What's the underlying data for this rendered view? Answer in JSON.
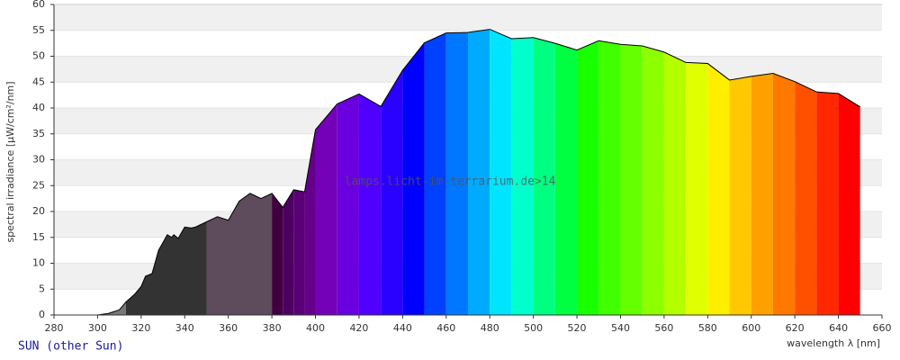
{
  "chart_data": {
    "type": "area",
    "y_label": "spectral irradiance [µW/cm²/nm]",
    "x_label": "wavelength λ [nm]",
    "watermark": "lamps.licht-im-terrarium.de>14",
    "caption": "SUN (other Sun)",
    "xlim": [
      280,
      660
    ],
    "ylim": [
      0,
      60
    ],
    "xticks": [
      280,
      300,
      320,
      340,
      360,
      380,
      400,
      420,
      440,
      460,
      480,
      500,
      520,
      540,
      560,
      580,
      600,
      620,
      640,
      660
    ],
    "yticks": [
      0,
      5,
      10,
      15,
      20,
      25,
      30,
      35,
      40,
      45,
      50,
      55,
      60
    ],
    "grid": true,
    "line_color": "#000000",
    "x": [
      280,
      300,
      305,
      310,
      313,
      317,
      320,
      322,
      325,
      328,
      330,
      332,
      334,
      335,
      337,
      340,
      343,
      345,
      350,
      355,
      360,
      365,
      370,
      375,
      380,
      385,
      390,
      395,
      400,
      410,
      420,
      430,
      440,
      450,
      460,
      470,
      480,
      490,
      500,
      510,
      520,
      530,
      540,
      550,
      560,
      570,
      580,
      590,
      600,
      610,
      620,
      630,
      640,
      650
    ],
    "values": [
      0,
      0,
      0.3,
      1,
      2.5,
      4,
      5.5,
      7.5,
      8,
      12.5,
      14,
      15.5,
      15,
      15.5,
      14.8,
      17,
      16.8,
      17,
      18,
      19,
      18.3,
      22,
      23.5,
      22.5,
      23.5,
      20.8,
      24.2,
      23.8,
      35.8,
      40.8,
      42.7,
      40.3,
      47.3,
      52.6,
      54.5,
      54.6,
      55.2,
      53.4,
      53.6,
      52.5,
      51.2,
      53,
      52.3,
      52,
      50.8,
      48.8,
      48.6,
      45.4,
      46.1,
      46.7,
      45.1,
      43.1,
      42.8,
      40.2
    ],
    "bands": [
      {
        "from": 300,
        "to": 313,
        "color": "#777777"
      },
      {
        "from": 313,
        "to": 350,
        "color": "#333333"
      },
      {
        "from": 350,
        "to": 380,
        "color": "#5e4b5b"
      },
      {
        "from": 380,
        "to": 385,
        "color": "#40003f"
      },
      {
        "from": 385,
        "to": 390,
        "color": "#4c0060"
      },
      {
        "from": 390,
        "to": 395,
        "color": "#5a0077"
      },
      {
        "from": 395,
        "to": 400,
        "color": "#65008a"
      },
      {
        "from": 400,
        "to": 410,
        "color": "#7400b8"
      },
      {
        "from": 410,
        "to": 420,
        "color": "#6a00e0"
      },
      {
        "from": 420,
        "to": 430,
        "color": "#4f00ff"
      },
      {
        "from": 430,
        "to": 440,
        "color": "#2a00ff"
      },
      {
        "from": 440,
        "to": 450,
        "color": "#0000ff"
      },
      {
        "from": 450,
        "to": 460,
        "color": "#0040ff"
      },
      {
        "from": 460,
        "to": 470,
        "color": "#0077ff"
      },
      {
        "from": 470,
        "to": 480,
        "color": "#00aaff"
      },
      {
        "from": 480,
        "to": 490,
        "color": "#00e5ff"
      },
      {
        "from": 490,
        "to": 500,
        "color": "#00ffcc"
      },
      {
        "from": 500,
        "to": 510,
        "color": "#00ff80"
      },
      {
        "from": 510,
        "to": 520,
        "color": "#00ff40"
      },
      {
        "from": 520,
        "to": 530,
        "color": "#1aff00"
      },
      {
        "from": 530,
        "to": 540,
        "color": "#40ff00"
      },
      {
        "from": 540,
        "to": 550,
        "color": "#66ff00"
      },
      {
        "from": 550,
        "to": 560,
        "color": "#8cff00"
      },
      {
        "from": 560,
        "to": 570,
        "color": "#b3ff00"
      },
      {
        "from": 570,
        "to": 580,
        "color": "#e0ff00"
      },
      {
        "from": 580,
        "to": 590,
        "color": "#ffee00"
      },
      {
        "from": 590,
        "to": 600,
        "color": "#ffc800"
      },
      {
        "from": 600,
        "to": 610,
        "color": "#ffa000"
      },
      {
        "from": 610,
        "to": 620,
        "color": "#ff7800"
      },
      {
        "from": 620,
        "to": 630,
        "color": "#ff5000"
      },
      {
        "from": 630,
        "to": 640,
        "color": "#ff2800"
      },
      {
        "from": 640,
        "to": 650,
        "color": "#ff0000"
      }
    ]
  }
}
